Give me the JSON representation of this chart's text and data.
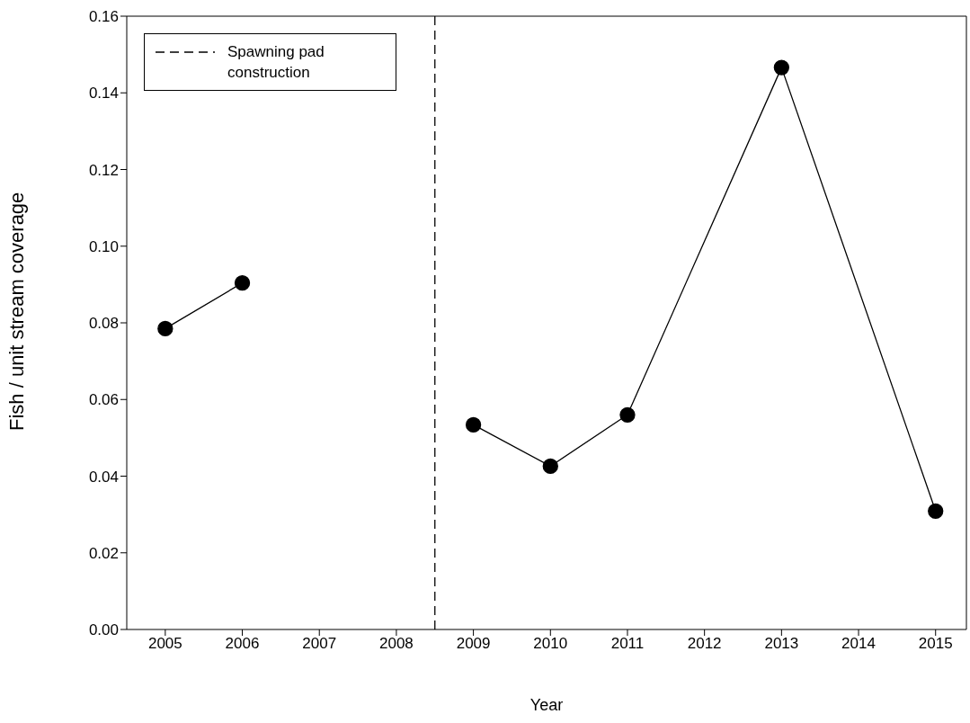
{
  "chart_data": {
    "type": "line",
    "xlabel": "Year",
    "ylabel": "Fish / unit stream coverage",
    "x": [
      2005,
      2006,
      2007,
      2008,
      2009,
      2010,
      2011,
      2013,
      2015
    ],
    "series": [
      {
        "color": "#000000",
        "values": [
          0.0785,
          0.0904,
          null,
          null,
          0.0534,
          0.0426,
          0.056,
          0.1466,
          0.0309
        ]
      }
    ],
    "xlim": [
      2004.5,
      2015.4
    ],
    "xticks": [
      2005,
      2006,
      2007,
      2008,
      2009,
      2010,
      2011,
      2012,
      2013,
      2014,
      2015
    ],
    "ylim": [
      0,
      0.16
    ],
    "yticks": [
      {
        "value": 0,
        "label": "0.00"
      },
      {
        "value": 0.02,
        "label": "0.02"
      },
      {
        "value": 0.04,
        "label": "0.04"
      },
      {
        "value": 0.06,
        "label": "0.06"
      },
      {
        "value": 0.08,
        "label": "0.08"
      },
      {
        "value": 0.1,
        "label": "0.10"
      },
      {
        "value": 0.12,
        "label": "0.12"
      },
      {
        "value": 0.14,
        "label": "0.14"
      },
      {
        "value": 0.16,
        "label": "0.16"
      }
    ],
    "ref_lines": [
      {
        "axis": "x",
        "value": 2008.5,
        "label": "Spawning pad construction",
        "color": "#000000",
        "line_style": "dashed"
      }
    ],
    "legend": "top left",
    "grid": false,
    "marker": "circle",
    "line_style": "solid"
  }
}
